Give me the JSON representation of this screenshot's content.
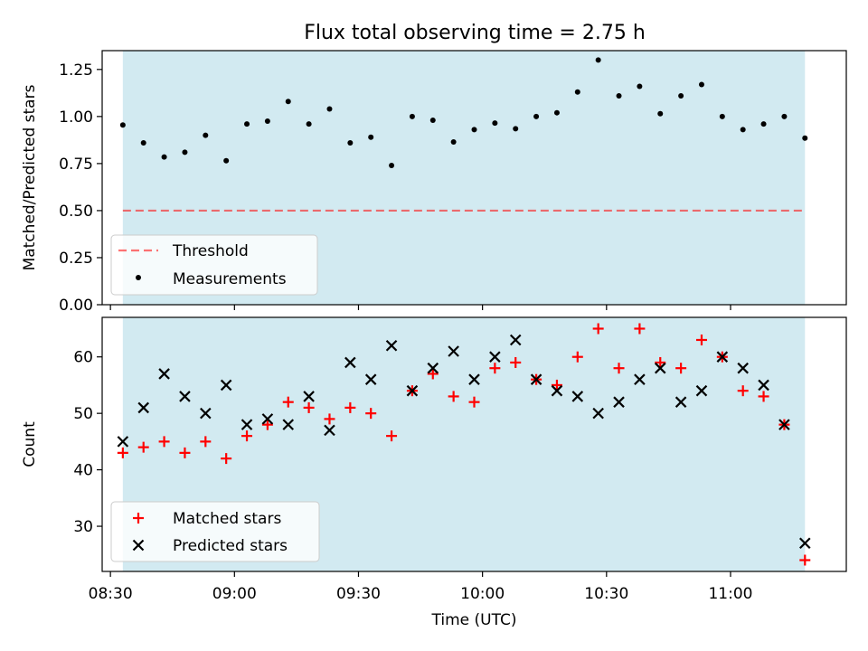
{
  "title": "Flux total observing time = 2.75 h",
  "colors": {
    "shade": "#add8e6",
    "threshold": "#ff0000",
    "measurement": "#000000",
    "matched": "#ff0000",
    "predicted": "#000000"
  },
  "chart_data": [
    {
      "type": "scatter",
      "ylabel": "Matched/Predicted stars",
      "ylim": [
        0,
        1.35
      ],
      "yticks": [
        0.0,
        0.25,
        0.5,
        0.75,
        1.0,
        1.25
      ],
      "ytick_labels": [
        "0.00",
        "0.25",
        "0.50",
        "0.75",
        "1.00",
        "1.25"
      ],
      "shaded_span": [
        "08:33",
        "11:18"
      ],
      "threshold": {
        "name": "Threshold",
        "value": 0.5
      },
      "legend_position": "lower-left",
      "series": [
        {
          "name": "Measurements",
          "times": [
            "08:33",
            "08:38",
            "08:43",
            "08:48",
            "08:53",
            "08:58",
            "09:03",
            "09:08",
            "09:13",
            "09:18",
            "09:23",
            "09:28",
            "09:33",
            "09:38",
            "09:43",
            "09:48",
            "09:53",
            "09:58",
            "10:03",
            "10:08",
            "10:13",
            "10:18",
            "10:23",
            "10:28",
            "10:33",
            "10:38",
            "10:43",
            "10:48",
            "10:53",
            "10:58",
            "11:03",
            "11:08",
            "11:13",
            "11:18"
          ],
          "values": [
            0.955,
            0.86,
            0.785,
            0.81,
            0.9,
            0.765,
            0.96,
            0.975,
            1.08,
            0.96,
            1.04,
            0.86,
            0.89,
            0.74,
            1.0,
            0.98,
            0.865,
            0.93,
            0.965,
            0.935,
            1.0,
            1.02,
            1.13,
            1.3,
            1.11,
            1.16,
            1.015,
            1.11,
            1.17,
            1.0,
            0.93,
            0.96,
            1.0,
            0.885
          ]
        }
      ]
    },
    {
      "type": "scatter",
      "xlabel": "Time (UTC)",
      "ylabel": "Count",
      "ylim": [
        22,
        67
      ],
      "yticks": [
        30,
        40,
        50,
        60
      ],
      "ytick_labels": [
        "30",
        "40",
        "50",
        "60"
      ],
      "xlim": [
        "08:28",
        "11:28"
      ],
      "xticks": [
        "08:30",
        "09:00",
        "09:30",
        "10:00",
        "10:30",
        "11:00"
      ],
      "shaded_span": [
        "08:33",
        "11:18"
      ],
      "legend_position": "lower-left",
      "series": [
        {
          "name": "Matched stars",
          "times": [
            "08:33",
            "08:38",
            "08:43",
            "08:48",
            "08:53",
            "08:58",
            "09:03",
            "09:08",
            "09:13",
            "09:18",
            "09:23",
            "09:28",
            "09:33",
            "09:38",
            "09:43",
            "09:48",
            "09:53",
            "09:58",
            "10:03",
            "10:08",
            "10:13",
            "10:18",
            "10:23",
            "10:28",
            "10:33",
            "10:38",
            "10:43",
            "10:48",
            "10:53",
            "10:58",
            "11:03",
            "11:08",
            "11:13",
            "11:18"
          ],
          "values": [
            43,
            44,
            45,
            43,
            45,
            42,
            46,
            48,
            52,
            51,
            49,
            51,
            50,
            46,
            54,
            57,
            53,
            52,
            58,
            59,
            56,
            55,
            60,
            65,
            58,
            65,
            59,
            58,
            63,
            60,
            54,
            53,
            48,
            24
          ]
        },
        {
          "name": "Predicted stars",
          "times": [
            "08:33",
            "08:38",
            "08:43",
            "08:48",
            "08:53",
            "08:58",
            "09:03",
            "09:08",
            "09:13",
            "09:18",
            "09:23",
            "09:28",
            "09:33",
            "09:38",
            "09:43",
            "09:48",
            "09:53",
            "09:58",
            "10:03",
            "10:08",
            "10:13",
            "10:18",
            "10:23",
            "10:28",
            "10:33",
            "10:38",
            "10:43",
            "10:48",
            "10:53",
            "10:58",
            "11:03",
            "11:08",
            "11:13",
            "11:18"
          ],
          "values": [
            45,
            51,
            57,
            53,
            50,
            55,
            48,
            49,
            48,
            53,
            47,
            59,
            56,
            62,
            54,
            58,
            61,
            56,
            60,
            63,
            56,
            54,
            53,
            50,
            52,
            56,
            58,
            52,
            54,
            60,
            58,
            55,
            48,
            27
          ]
        }
      ]
    }
  ]
}
